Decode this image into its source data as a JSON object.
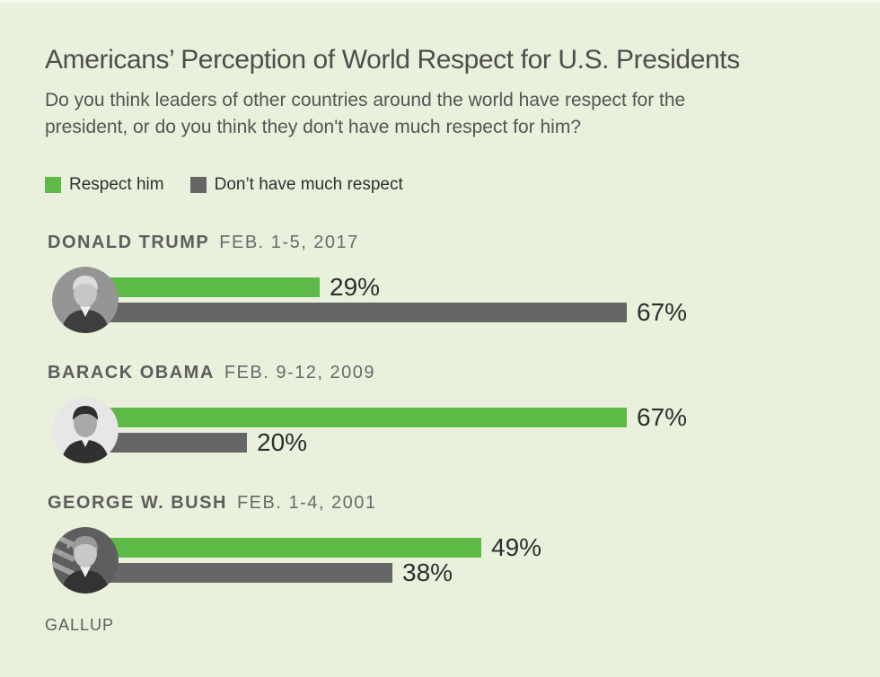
{
  "page_background": "#e9f1dc",
  "chart_data": {
    "type": "bar",
    "orientation": "horizontal",
    "unit": "percent",
    "title": "Americans’ Perception of World Respect for U.S. Presidents",
    "subtitle": "Do you think leaders of other countries around the world have respect for the president, or do you think they don't have much respect for him?",
    "legend_position": "top",
    "grid": false,
    "categories": [
      "DONALD TRUMP",
      "BARACK OBAMA",
      "GEORGE W. BUSH"
    ],
    "category_dates": [
      "FEB. 1-5, 2017",
      "FEB. 9-12, 2009",
      "FEB. 1-4, 2001"
    ],
    "portraits": [
      "donald-trump-portrait",
      "barack-obama-portrait",
      "george-w-bush-portrait"
    ],
    "series": [
      {
        "name": "Respect him",
        "color": "#5eba46",
        "values": [
          29,
          67,
          49
        ]
      },
      {
        "name": "Don’t have much respect",
        "color": "#666666",
        "values": [
          67,
          20,
          38
        ]
      }
    ],
    "value_label_format": "{value}%",
    "xlim": [
      0,
      100
    ],
    "source": "GALLUP"
  }
}
